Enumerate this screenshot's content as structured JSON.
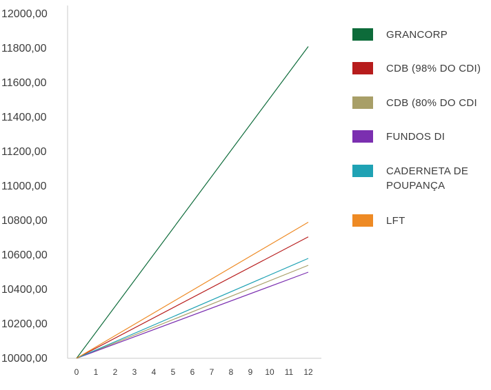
{
  "chart_data": {
    "type": "line",
    "title": "",
    "xlabel": "",
    "ylabel": "",
    "x": [
      0,
      1,
      2,
      3,
      4,
      5,
      6,
      7,
      8,
      9,
      10,
      11,
      12
    ],
    "x_tick_labels": [
      "0",
      "1",
      "2",
      "3",
      "4",
      "5",
      "6",
      "7",
      "8",
      "9",
      "10",
      "11",
      "12"
    ],
    "xlim": [
      0,
      12
    ],
    "ylim": [
      10000,
      12000
    ],
    "y_ticks": [
      10000,
      10200,
      10400,
      10600,
      10800,
      11000,
      11200,
      11400,
      11600,
      11800,
      12000
    ],
    "y_tick_labels": [
      "10000,00",
      "10200,00",
      "10400,00",
      "10600,00",
      "10800,00",
      "11000,00",
      "11200,00",
      "11400,00",
      "11600,00",
      "11800,00",
      "12000,00"
    ],
    "grid": false,
    "legend_position": "right",
    "series": [
      {
        "name": "GRANCORP",
        "color": "#0d6b3a",
        "start": 10000,
        "end": 11810
      },
      {
        "name": "CDB (98% DO CDI)",
        "color": "#b71c1c",
        "start": 10000,
        "end": 10705
      },
      {
        "name": "CDB (80% DO CDI",
        "color": "#a89f68",
        "start": 10000,
        "end": 10540
      },
      {
        "name": "FUNDOS DI",
        "color": "#7b2fb0",
        "start": 10000,
        "end": 10500
      },
      {
        "name": "CADERNETA DE POUPANÇA",
        "label_lines": [
          "CADERNETA DE",
          "POUPANÇA"
        ],
        "color": "#1fa2b4",
        "start": 10000,
        "end": 10580
      },
      {
        "name": "LFT",
        "color": "#ee8a24",
        "start": 10000,
        "end": 10790
      }
    ]
  }
}
